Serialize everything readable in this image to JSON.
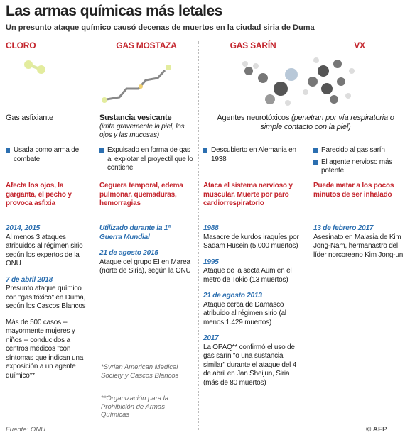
{
  "header": {
    "title": "Las armas químicas más letales",
    "subtitle": "Un presunto ataque químico causó decenas de muertos en la ciudad siria de Duma"
  },
  "columns": [
    {
      "name": "CLORO",
      "type": "Gas asfixiante",
      "bullets": [
        "Usada como arma de combate"
      ],
      "effects": "Afecta los ojos, la garganta, el pecho y provoca asfixia",
      "events": [
        {
          "date": "2014, 2015",
          "text": "Al menos 3 ataques atribuidos al régimen sirio según los expertos de la ONU"
        },
        {
          "date": "7 de abril 2018",
          "text": "Presunto ataque químico con \"gas tóxico\" en Duma, según los Cascos Blancos"
        },
        {
          "text": "Más de 500 casos -- mayormente mujeres y niños -- conducidos a centros médicos \"con síntomas que indican una exposición a un agente químico**"
        }
      ]
    },
    {
      "name": "GAS MOSTAZA",
      "type": "Sustancia vesicante",
      "type_note": "(irrita gravemente la piel, los ojos y las mucosas)",
      "bullets": [
        "Expulsado en forma de gas al explotar el proyectil que lo contiene"
      ],
      "effects": "Ceguera temporal, edema pulmonar, quemaduras, hemorragias",
      "events": [
        {
          "date": "Utilizado durante la 1ª Guerra Mundial"
        },
        {
          "date": "21 de agosto 2015",
          "text": "Ataque del grupo EI en Marea (norte de Siria), según la ONU"
        }
      ]
    },
    {
      "name": "GAS SARÍN",
      "bullets": [
        "Descubierto en Alemania en 1938"
      ],
      "effects": "Ataca el sistema nervioso y muscular. Muerte por paro cardiorrespiratorio",
      "events": [
        {
          "date": "1988",
          "text": "Masacre de kurdos iraquíes por Sadam Husein (5.000 muertos)"
        },
        {
          "date": "1995",
          "text": "Ataque de la secta Aum en el metro de Tokio (13 muertos)"
        },
        {
          "date": "21 de agosto 2013",
          "text": "Ataque cerca de Damasco atribuido al régimen sirio (al menos 1.429 muertos)"
        },
        {
          "date": "2017",
          "text": "La OPAQ** confirmó el uso de gas sarín \"o una sustancia similar\" durante el ataque del 4 de abril en Jan Sheijun, Siria (más de 80 muertos)"
        }
      ]
    },
    {
      "name": "VX",
      "bullets": [
        "Parecido al gas sarín",
        "El agente nervioso más potente"
      ],
      "effects": "Puede matar a los pocos minutos de ser inhalado",
      "events": [
        {
          "date": "13 de febrero 2017",
          "text": "Asesinato en Malasia de Kim Jong-Nam, hermanastro del líder norcoreano Kim Jong-un"
        }
      ]
    }
  ],
  "nerve_agents": {
    "label": "Agentes neurotóxicos",
    "note": "(penetran por vía respiratoria o simple contacto con la piel)"
  },
  "footnotes": [
    "*Syrian American Medical Society y Cascos Blancos",
    "**Organización para la Prohibición de Armas Químicas"
  ],
  "source": "Fuente: ONU",
  "credit": "© AFP"
}
